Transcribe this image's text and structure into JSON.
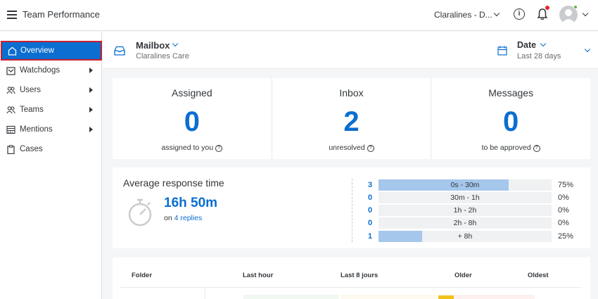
{
  "topbar": {
    "title": "Team Performance",
    "account": "Claralines - D...",
    "icons": [
      "menu-icon",
      "info-icon",
      "bell-icon",
      "avatar"
    ]
  },
  "sidebar": {
    "items": [
      {
        "label": "Overview",
        "icon": "home-icon",
        "active": true,
        "expandable": false
      },
      {
        "label": "Watchdogs",
        "icon": "watchdog-icon",
        "active": false,
        "expandable": true
      },
      {
        "label": "Users",
        "icon": "users-icon",
        "active": false,
        "expandable": true
      },
      {
        "label": "Teams",
        "icon": "teams-icon",
        "active": false,
        "expandable": true
      },
      {
        "label": "Mentions",
        "icon": "mentions-icon",
        "active": false,
        "expandable": true
      },
      {
        "label": "Cases",
        "icon": "clipboard-icon",
        "active": false,
        "expandable": false
      }
    ]
  },
  "header": {
    "mailbox_label": "Mailbox",
    "mailbox_value": "Claralines Care",
    "date_label": "Date",
    "date_value": "Last 28 days"
  },
  "stats": [
    {
      "title": "Assigned",
      "value": "0",
      "sub": "assigned to you"
    },
    {
      "title": "Inbox",
      "value": "2",
      "sub": "unresolved"
    },
    {
      "title": "Messages",
      "value": "0",
      "sub": "to be approved"
    }
  ],
  "response": {
    "title": "Average response time",
    "value": "16h 50m",
    "on_label": "on",
    "replies_link": "4 replies",
    "distribution": [
      {
        "count": "3",
        "label": "0s - 30m",
        "pct": "75%",
        "fraction": 0.75
      },
      {
        "count": "0",
        "label": "30m - 1h",
        "pct": "0%",
        "fraction": 0
      },
      {
        "count": "0",
        "label": "1h - 2h",
        "pct": "0%",
        "fraction": 0
      },
      {
        "count": "0",
        "label": "2h - 8h",
        "pct": "0%",
        "fraction": 0
      },
      {
        "count": "1",
        "label": "+ 8h",
        "pct": "25%",
        "fraction": 0.25
      }
    ]
  },
  "table": {
    "headers": [
      "Folder",
      "Last hour",
      "Last 8 jours",
      "Older",
      "Oldest"
    ]
  },
  "colors": {
    "accent": "#0b6ed0",
    "active_border": "#c8202e",
    "bar_fill": "#a5c7ec",
    "bar_track": "#eff1f2"
  }
}
